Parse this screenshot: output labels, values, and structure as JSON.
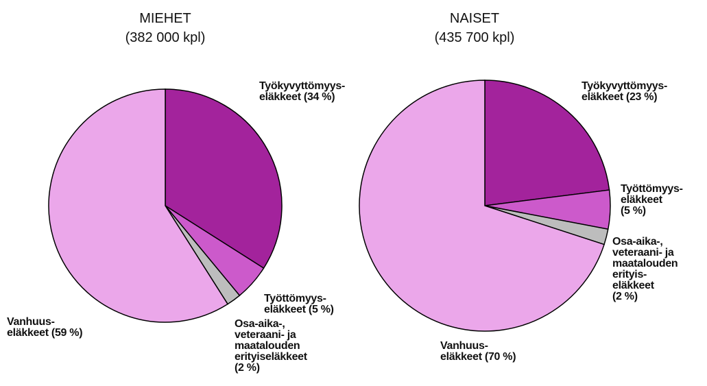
{
  "chart_data": [
    {
      "type": "pie",
      "title": "MIEHET",
      "subtitle": "(382 000 kpl)",
      "categories": [
        "Työkyvyttömyys-\neläkkeet",
        "Työttömyys-\neläkkeet",
        "Osa-aika-,\nveteraani- ja\nmaatalouden\nerityiseläkkeet",
        "Vanhuus-\neläkkeet"
      ],
      "values": [
        34,
        5,
        2,
        59
      ],
      "value_labels": [
        "(34 %)",
        "(5 %)",
        "(2 %)",
        "(59 %)"
      ],
      "colors": [
        "#a3239c",
        "#cc5acb",
        "#bdbdbd",
        "#eba7ea"
      ]
    },
    {
      "type": "pie",
      "title": "NAISET",
      "subtitle": "(435 700 kpl)",
      "categories": [
        "Työkyvyttömyys-\neläkkeet",
        "Työttömyys-\neläkkeet",
        "Osa-aika-,\nveteraani- ja\nmaatalouden\nerityis-\neläkkeet",
        "Vanhuus-\neläkkeet"
      ],
      "values": [
        23,
        5,
        2,
        70
      ],
      "value_labels": [
        "(23 %)",
        "(5 %)",
        "(2 %)",
        "(70 %)"
      ],
      "colors": [
        "#a3239c",
        "#cc5acb",
        "#bdbdbd",
        "#eba7ea"
      ]
    }
  ]
}
